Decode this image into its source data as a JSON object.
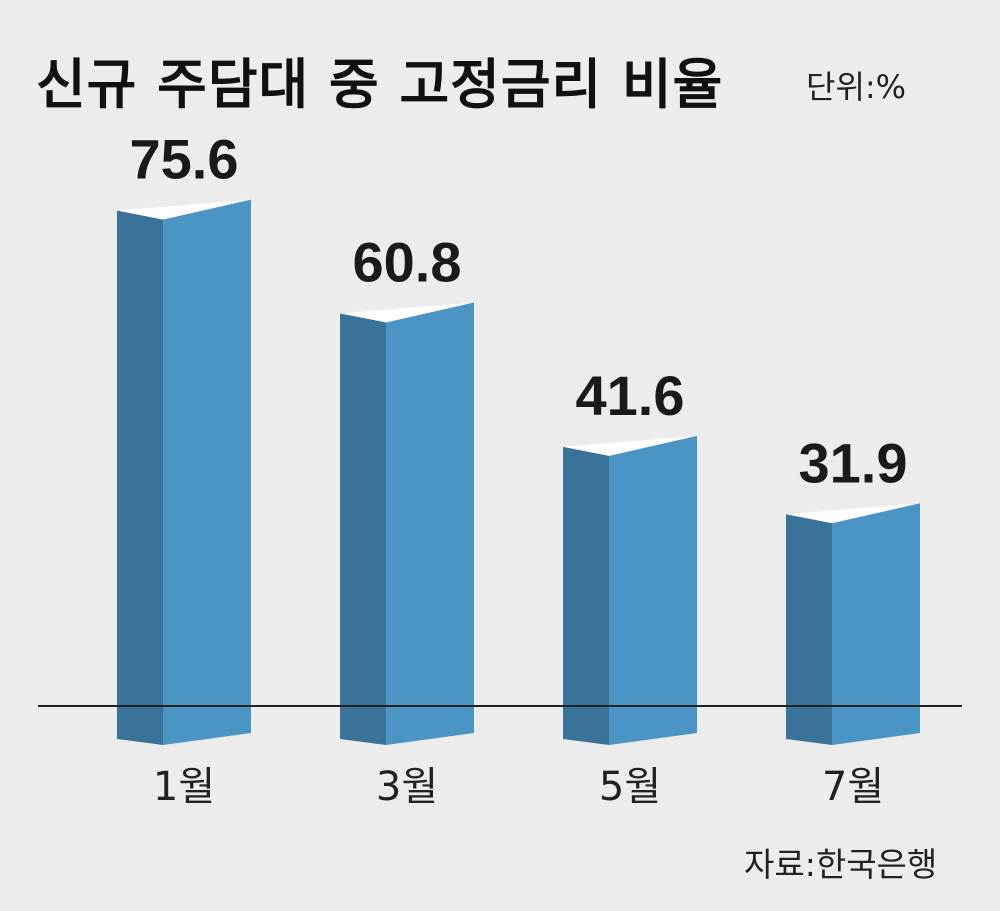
{
  "chart_data": {
    "type": "bar",
    "title": "신규 주담대 중 고정금리 비율",
    "unit": "단위:%",
    "source": "자료:한국은행",
    "categories": [
      "1월",
      "3월",
      "5월",
      "7월"
    ],
    "values": [
      75.6,
      60.8,
      41.6,
      31.9
    ],
    "colors": {
      "front": "#4b95c4",
      "side": "#3a7399",
      "top": "#ffffff",
      "background": "#ececec",
      "baseline": "#222222"
    }
  }
}
